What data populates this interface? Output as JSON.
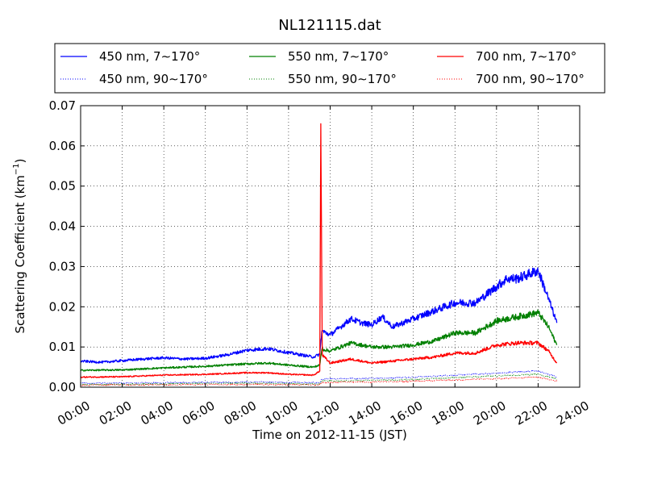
{
  "chart_data": {
    "type": "line",
    "title": "NL121115.dat",
    "xlabel": "Time on 2012-11-15 (JST)",
    "ylabel": "Scattering Coefficient (km",
    "ylabel_exponent": "−1",
    "ylabel_suffix": ")",
    "xlim_hours": [
      0,
      24
    ],
    "ylim": [
      0,
      0.07
    ],
    "x_ticks": [
      "00:00",
      "02:00",
      "04:00",
      "06:00",
      "08:00",
      "10:00",
      "12:00",
      "14:00",
      "16:00",
      "18:00",
      "20:00",
      "22:00",
      "24:00"
    ],
    "y_ticks": [
      "0.00",
      "0.01",
      "0.02",
      "0.03",
      "0.04",
      "0.05",
      "0.06",
      "0.07"
    ],
    "grid": true,
    "legend_placement": "top",
    "series": [
      {
        "name": "450 nm, 7∼170°",
        "color": "#0000ff",
        "style": "solid",
        "points": [
          [
            0,
            0.0065
          ],
          [
            1,
            0.0062
          ],
          [
            2,
            0.0066
          ],
          [
            3,
            0.007
          ],
          [
            4,
            0.0073
          ],
          [
            5,
            0.007
          ],
          [
            6,
            0.0072
          ],
          [
            7,
            0.008
          ],
          [
            8,
            0.0092
          ],
          [
            9,
            0.0096
          ],
          [
            10,
            0.0086
          ],
          [
            11.2,
            0.0075
          ],
          [
            11.5,
            0.0082
          ],
          [
            11.6,
            0.014
          ],
          [
            12,
            0.013
          ],
          [
            12.5,
            0.015
          ],
          [
            13,
            0.017
          ],
          [
            13.5,
            0.016
          ],
          [
            14,
            0.0155
          ],
          [
            14.5,
            0.0175
          ],
          [
            15,
            0.015
          ],
          [
            16,
            0.017
          ],
          [
            17,
            0.019
          ],
          [
            18,
            0.021
          ],
          [
            19,
            0.021
          ],
          [
            19.5,
            0.023
          ],
          [
            20,
            0.025
          ],
          [
            20.5,
            0.027
          ],
          [
            21,
            0.027
          ],
          [
            21.5,
            0.028
          ],
          [
            22,
            0.029
          ],
          [
            22.5,
            0.022
          ],
          [
            22.9,
            0.016
          ]
        ]
      },
      {
        "name": "550 nm, 7∼170°",
        "color": "#008000",
        "style": "solid",
        "points": [
          [
            0,
            0.0042
          ],
          [
            2,
            0.0043
          ],
          [
            4,
            0.0048
          ],
          [
            6,
            0.0052
          ],
          [
            8,
            0.0058
          ],
          [
            9,
            0.006
          ],
          [
            10,
            0.0055
          ],
          [
            11.2,
            0.005
          ],
          [
            11.5,
            0.0055
          ],
          [
            11.6,
            0.0095
          ],
          [
            12,
            0.009
          ],
          [
            13,
            0.011
          ],
          [
            14,
            0.01
          ],
          [
            15,
            0.01
          ],
          [
            16,
            0.0105
          ],
          [
            17,
            0.0115
          ],
          [
            18,
            0.0135
          ],
          [
            19,
            0.0135
          ],
          [
            20,
            0.0165
          ],
          [
            21,
            0.0175
          ],
          [
            22,
            0.0185
          ],
          [
            22.5,
            0.015
          ],
          [
            22.9,
            0.0105
          ]
        ]
      },
      {
        "name": "700 nm, 7∼170°",
        "color": "#ff0000",
        "style": "solid",
        "points": [
          [
            0,
            0.0025
          ],
          [
            2,
            0.0026
          ],
          [
            4,
            0.003
          ],
          [
            6,
            0.0032
          ],
          [
            8,
            0.0036
          ],
          [
            9,
            0.0036
          ],
          [
            10,
            0.0032
          ],
          [
            11.2,
            0.003
          ],
          [
            11.5,
            0.004
          ],
          [
            11.55,
            0.0655
          ],
          [
            11.62,
            0.008
          ],
          [
            12,
            0.006
          ],
          [
            13,
            0.007
          ],
          [
            14,
            0.006
          ],
          [
            15,
            0.0065
          ],
          [
            16,
            0.007
          ],
          [
            17,
            0.0075
          ],
          [
            18,
            0.0085
          ],
          [
            19,
            0.0085
          ],
          [
            20,
            0.0105
          ],
          [
            21,
            0.011
          ],
          [
            22,
            0.011
          ],
          [
            22.5,
            0.009
          ],
          [
            22.9,
            0.006
          ]
        ]
      },
      {
        "name": "450 nm, 90∼170°",
        "color": "#0000ff",
        "style": "dotted",
        "points": [
          [
            0,
            0.001
          ],
          [
            4,
            0.0011
          ],
          [
            8,
            0.0013
          ],
          [
            10,
            0.0012
          ],
          [
            11.5,
            0.0011
          ],
          [
            11.6,
            0.002
          ],
          [
            14,
            0.0022
          ],
          [
            16,
            0.0025
          ],
          [
            18,
            0.003
          ],
          [
            20,
            0.0035
          ],
          [
            21,
            0.0038
          ],
          [
            22,
            0.004
          ],
          [
            22.9,
            0.0025
          ]
        ]
      },
      {
        "name": "550 nm, 90∼170°",
        "color": "#008000",
        "style": "dotted",
        "points": [
          [
            0,
            0.0007
          ],
          [
            4,
            0.0008
          ],
          [
            8,
            0.001
          ],
          [
            10,
            0.0009
          ],
          [
            11.5,
            0.0008
          ],
          [
            11.6,
            0.0015
          ],
          [
            14,
            0.0017
          ],
          [
            16,
            0.0019
          ],
          [
            18,
            0.0024
          ],
          [
            20,
            0.0028
          ],
          [
            21,
            0.003
          ],
          [
            22,
            0.0032
          ],
          [
            22.9,
            0.002
          ]
        ]
      },
      {
        "name": "700 nm, 90∼170°",
        "color": "#ff0000",
        "style": "dotted",
        "points": [
          [
            0,
            0.0005
          ],
          [
            4,
            0.0006
          ],
          [
            8,
            0.0007
          ],
          [
            10,
            0.0006
          ],
          [
            11.5,
            0.0006
          ],
          [
            11.6,
            0.0012
          ],
          [
            14,
            0.0013
          ],
          [
            16,
            0.0015
          ],
          [
            18,
            0.0018
          ],
          [
            20,
            0.0021
          ],
          [
            21,
            0.0023
          ],
          [
            22,
            0.0025
          ],
          [
            22.9,
            0.0015
          ]
        ]
      }
    ],
    "legend_order": [
      0,
      1,
      2,
      3,
      4,
      5
    ]
  }
}
